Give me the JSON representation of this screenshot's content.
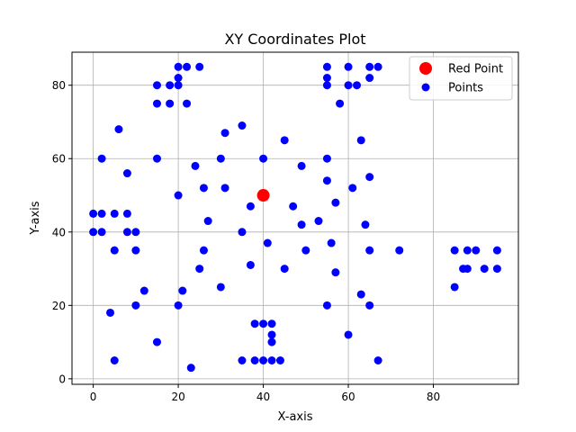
{
  "chart_data": {
    "type": "scatter",
    "title": "XY Coordinates Plot",
    "xlabel": "X-axis",
    "ylabel": "Y-axis",
    "xlim": [
      -5,
      100
    ],
    "ylim": [
      -1.5,
      89
    ],
    "xticks": [
      0,
      20,
      40,
      60,
      80
    ],
    "yticks": [
      0,
      20,
      40,
      60,
      80
    ],
    "grid": true,
    "legend_position": "top-right",
    "series": [
      {
        "name": "Red Point",
        "color": "#ff0000",
        "marker": "large-circle",
        "points": [
          [
            40,
            50
          ]
        ]
      },
      {
        "name": "Points",
        "color": "#0000ff",
        "marker": "circle",
        "points": [
          [
            0,
            45
          ],
          [
            2,
            45
          ],
          [
            5,
            45
          ],
          [
            8,
            45
          ],
          [
            0,
            40
          ],
          [
            2,
            40
          ],
          [
            8,
            40
          ],
          [
            10,
            40
          ],
          [
            2,
            60
          ],
          [
            5,
            35
          ],
          [
            10,
            35
          ],
          [
            6,
            68
          ],
          [
            8,
            56
          ],
          [
            4,
            18
          ],
          [
            5,
            5
          ],
          [
            10,
            20
          ],
          [
            12,
            24
          ],
          [
            15,
            10
          ],
          [
            15,
            80
          ],
          [
            18,
            80
          ],
          [
            20,
            80
          ],
          [
            20,
            82
          ],
          [
            20,
            85
          ],
          [
            22,
            85
          ],
          [
            25,
            85
          ],
          [
            15,
            75
          ],
          [
            18,
            75
          ],
          [
            22,
            75
          ],
          [
            15,
            60
          ],
          [
            20,
            50
          ],
          [
            24,
            58
          ],
          [
            26,
            52
          ],
          [
            27,
            43
          ],
          [
            26,
            35
          ],
          [
            25,
            30
          ],
          [
            21,
            24
          ],
          [
            20,
            20
          ],
          [
            23,
            3
          ],
          [
            30,
            25
          ],
          [
            30,
            60
          ],
          [
            31,
            67
          ],
          [
            35,
            69
          ],
          [
            31,
            52
          ],
          [
            35,
            40
          ],
          [
            37,
            47
          ],
          [
            37,
            31
          ],
          [
            35,
            5
          ],
          [
            38,
            15
          ],
          [
            40,
            15
          ],
          [
            42,
            15
          ],
          [
            42,
            12
          ],
          [
            42,
            10
          ],
          [
            38,
            5
          ],
          [
            40,
            5
          ],
          [
            42,
            5
          ],
          [
            44,
            5
          ],
          [
            40,
            60
          ],
          [
            41,
            37
          ],
          [
            45,
            30
          ],
          [
            45,
            65
          ],
          [
            47,
            47
          ],
          [
            49,
            58
          ],
          [
            49,
            42
          ],
          [
            50,
            35
          ],
          [
            53,
            43
          ],
          [
            55,
            60
          ],
          [
            55,
            54
          ],
          [
            55,
            85
          ],
          [
            55,
            82
          ],
          [
            55,
            80
          ],
          [
            55,
            20
          ],
          [
            56,
            37
          ],
          [
            57,
            48
          ],
          [
            57,
            29
          ],
          [
            58,
            75
          ],
          [
            60,
            85
          ],
          [
            60,
            80
          ],
          [
            62,
            80
          ],
          [
            60,
            12
          ],
          [
            61,
            52
          ],
          [
            63,
            65
          ],
          [
            63,
            23
          ],
          [
            64,
            42
          ],
          [
            65,
            85
          ],
          [
            67,
            85
          ],
          [
            65,
            82
          ],
          [
            65,
            55
          ],
          [
            65,
            35
          ],
          [
            65,
            20
          ],
          [
            67,
            5
          ],
          [
            72,
            35
          ],
          [
            85,
            35
          ],
          [
            88,
            35
          ],
          [
            90,
            35
          ],
          [
            95,
            35
          ],
          [
            87,
            30
          ],
          [
            88,
            30
          ],
          [
            92,
            30
          ],
          [
            95,
            30
          ],
          [
            85,
            25
          ]
        ]
      }
    ]
  }
}
